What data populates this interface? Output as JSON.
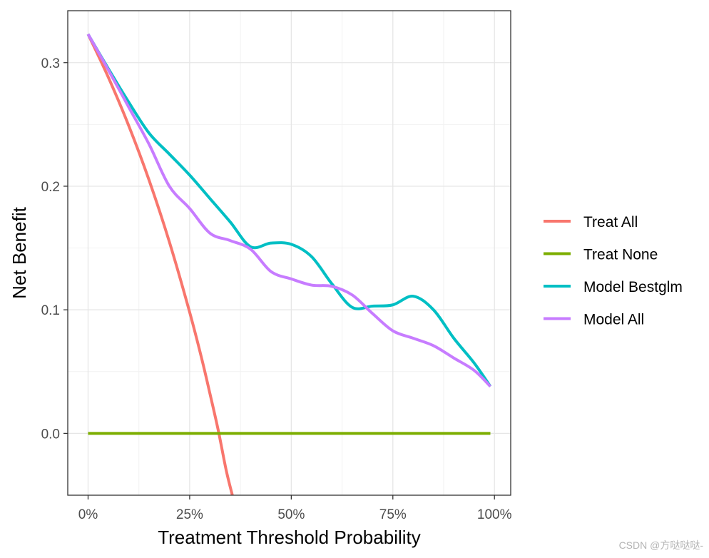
{
  "chart_data": {
    "type": "line",
    "title": "",
    "xlabel": "Treatment Threshold Probability",
    "ylabel": "Net Benefit",
    "xlim": [
      -0.05,
      1.04
    ],
    "ylim": [
      -0.05,
      0.342
    ],
    "x_ticks": [
      0,
      0.25,
      0.5,
      0.75,
      1.0
    ],
    "x_tick_labels": [
      "0%",
      "25%",
      "50%",
      "75%",
      "100%"
    ],
    "y_ticks": [
      0.0,
      0.1,
      0.2,
      0.3
    ],
    "y_tick_labels": [
      "0.0",
      "0.1",
      "0.2",
      "0.3"
    ],
    "grid": true,
    "legend_position": "right",
    "series": [
      {
        "name": "Treat All",
        "color": "#F8766D",
        "x": [
          0,
          0.05,
          0.1,
          0.15,
          0.2,
          0.25,
          0.28,
          0.3,
          0.32,
          0.34,
          0.355
        ],
        "y": [
          0.323,
          0.288,
          0.249,
          0.205,
          0.155,
          0.098,
          0.06,
          0.032,
          0.003,
          -0.03,
          -0.05
        ]
      },
      {
        "name": "Treat None",
        "color": "#7CAE00",
        "x": [
          0,
          0.99
        ],
        "y": [
          0,
          0
        ]
      },
      {
        "name": "Model Bestglm",
        "color": "#00BFC4",
        "x": [
          0,
          0.05,
          0.1,
          0.15,
          0.2,
          0.25,
          0.3,
          0.35,
          0.4,
          0.45,
          0.5,
          0.55,
          0.6,
          0.65,
          0.7,
          0.75,
          0.8,
          0.85,
          0.9,
          0.95,
          0.99
        ],
        "y": [
          0.323,
          0.295,
          0.268,
          0.243,
          0.226,
          0.209,
          0.19,
          0.171,
          0.151,
          0.154,
          0.153,
          0.143,
          0.121,
          0.102,
          0.103,
          0.104,
          0.111,
          0.1,
          0.077,
          0.057,
          0.038
        ]
      },
      {
        "name": "Model All",
        "color": "#C77CFF",
        "x": [
          0,
          0.05,
          0.1,
          0.15,
          0.2,
          0.25,
          0.3,
          0.35,
          0.4,
          0.45,
          0.5,
          0.55,
          0.6,
          0.65,
          0.7,
          0.75,
          0.8,
          0.85,
          0.9,
          0.95,
          0.99
        ],
        "y": [
          0.323,
          0.294,
          0.264,
          0.234,
          0.2,
          0.182,
          0.162,
          0.156,
          0.149,
          0.131,
          0.125,
          0.12,
          0.119,
          0.112,
          0.097,
          0.083,
          0.077,
          0.071,
          0.061,
          0.051,
          0.038
        ]
      }
    ]
  },
  "watermark": "CSDN @方哒哒哒-"
}
